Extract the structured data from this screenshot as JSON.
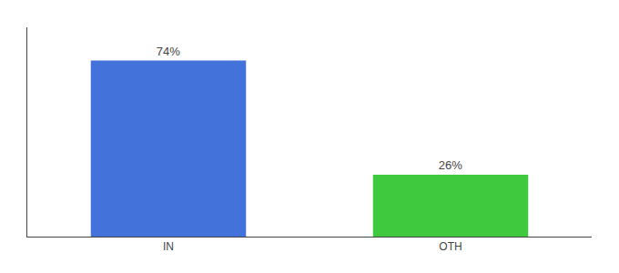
{
  "chart_data": {
    "type": "bar",
    "categories": [
      "IN",
      "OTH"
    ],
    "values": [
      74,
      26
    ],
    "value_labels": [
      "74%",
      "26%"
    ],
    "colors": [
      "#4472db",
      "#3ec93e"
    ],
    "ylim": [
      0,
      88
    ],
    "data_labels": true,
    "tick_labels": "x",
    "grid": false
  }
}
